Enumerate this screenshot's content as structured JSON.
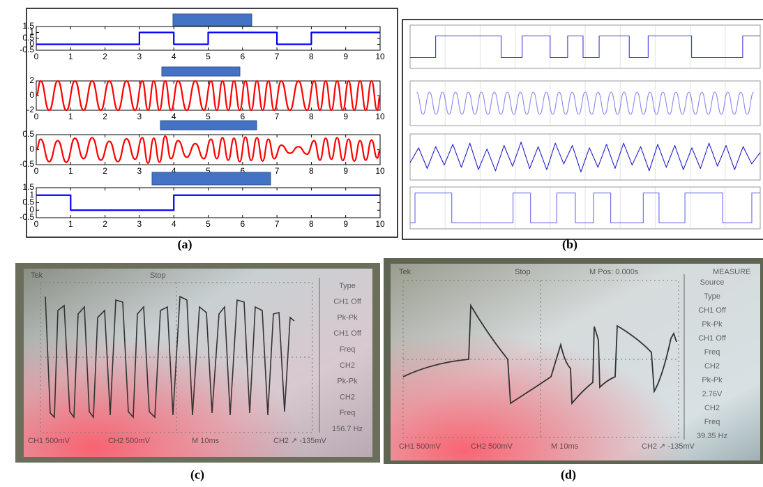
{
  "chart_data": [
    {
      "type": "line",
      "x": [
        0,
        3,
        3,
        4,
        4,
        5,
        5,
        7,
        7,
        8,
        8,
        10
      ],
      "values": [
        0,
        0,
        1,
        1,
        0,
        0,
        1,
        1,
        0,
        0,
        1,
        1
      ],
      "color": "#0000ff",
      "xlim": [
        0,
        10
      ],
      "ylim": [
        -0.5,
        1.5
      ],
      "xticks": [
        0,
        1,
        2,
        3,
        4,
        5,
        6,
        7,
        8,
        9,
        10
      ],
      "yticks": [
        -0.5,
        0,
        0.5,
        1,
        1.5
      ],
      "grid": false
    },
    {
      "type": "line",
      "smooth": true,
      "color": "#ff0000",
      "x": [
        0,
        0.125,
        0.375,
        0.625,
        0.875,
        1.125,
        1.375,
        1.625,
        1.875,
        2.125,
        2.375,
        2.625,
        2.875,
        3.083,
        3.25,
        3.417,
        3.583,
        3.75,
        3.917,
        4.125,
        4.375,
        4.625,
        4.875,
        5.083,
        5.25,
        5.417,
        5.583,
        5.75,
        5.917,
        6.083,
        6.25,
        6.417,
        6.583,
        6.75,
        6.917,
        7.125,
        7.375,
        7.625,
        7.875,
        8.083,
        8.25,
        8.417,
        8.583,
        8.75,
        8.917,
        9.083,
        9.25,
        9.417,
        9.583,
        9.75,
        9.917,
        10
      ],
      "values": [
        0,
        2,
        -2,
        2,
        -2,
        2,
        -2,
        2,
        -2,
        2,
        -2,
        2,
        -2,
        2,
        -2,
        2,
        -2,
        2,
        -2,
        2,
        -2,
        2,
        -2,
        2,
        -2,
        2,
        -2,
        2,
        -2,
        2,
        -2,
        2,
        -2,
        2,
        -2,
        2,
        -2,
        2,
        -2,
        2,
        -2,
        2,
        -2,
        2,
        -2,
        2,
        -2,
        2,
        -2,
        2,
        -2,
        0
      ],
      "xlim": [
        0,
        10
      ],
      "ylim": [
        -2,
        2
      ],
      "xticks": [
        0,
        1,
        2,
        3,
        4,
        5,
        6,
        7,
        8,
        9,
        10
      ],
      "yticks": [
        -2,
        0,
        2
      ],
      "grid": false
    },
    {
      "type": "line",
      "smooth": true,
      "color": "#ff0000",
      "x": [
        0,
        0.125,
        0.375,
        0.625,
        0.875,
        1.125,
        1.375,
        1.625,
        1.875,
        2.125,
        2.375,
        2.625,
        2.875,
        3.083,
        3.25,
        3.417,
        3.583,
        3.75,
        3.917,
        4.125,
        4.375,
        4.625,
        4.875,
        5.083,
        5.25,
        5.417,
        5.583,
        5.75,
        5.917,
        6.083,
        6.25,
        6.417,
        6.583,
        6.75,
        6.917,
        7.125,
        7.375,
        7.625,
        7.875,
        8.083,
        8.25,
        8.417,
        8.583,
        8.75,
        8.917,
        9.083,
        9.25,
        9.417,
        9.583,
        9.75,
        9.917,
        10
      ],
      "values": [
        0,
        0.35,
        -0.4,
        0.3,
        -0.42,
        0.38,
        -0.3,
        0.4,
        -0.35,
        0.28,
        -0.4,
        0.36,
        -0.32,
        0.4,
        -0.45,
        0.38,
        -0.42,
        0.45,
        -0.3,
        0.3,
        -0.25,
        0.2,
        -0.3,
        0.35,
        -0.3,
        0.4,
        -0.35,
        0.38,
        -0.4,
        0.42,
        -0.36,
        0.4,
        -0.38,
        0.35,
        -0.3,
        0.15,
        -0.12,
        0.1,
        -0.15,
        0.3,
        -0.35,
        0.38,
        -0.32,
        0.4,
        -0.36,
        0.35,
        -0.38,
        0.3,
        -0.35,
        0.32,
        -0.28,
        0
      ],
      "xlim": [
        0,
        10
      ],
      "ylim": [
        -0.5,
        0.5
      ],
      "xticks": [
        0,
        1,
        2,
        3,
        4,
        5,
        6,
        7,
        8,
        9,
        10
      ],
      "yticks": [
        -0.5,
        0,
        0.5
      ],
      "grid": false
    },
    {
      "type": "line",
      "x": [
        0,
        1,
        1,
        4,
        4,
        10
      ],
      "values": [
        1,
        1,
        0,
        0,
        1,
        1
      ],
      "color": "#0000ff",
      "xlim": [
        0,
        10
      ],
      "ylim": [
        -0.5,
        1.5
      ],
      "xticks": [
        0,
        1,
        2,
        3,
        4,
        5,
        6,
        7,
        8,
        9,
        10
      ],
      "yticks": [
        -0.5,
        0,
        0.5,
        1,
        1.5
      ],
      "grid": false
    },
    {
      "type": "line",
      "color": "#3a3ad8",
      "grid": true,
      "xlim": [
        0,
        100
      ],
      "ylim": [
        -0.5,
        1.5
      ],
      "x": [
        0,
        7.3,
        7.3,
        26,
        26,
        32,
        32,
        40,
        40,
        45,
        45,
        49.4,
        49.4,
        54,
        54,
        62.6,
        62.6,
        68,
        68,
        80.4,
        80.4,
        95,
        95,
        100
      ],
      "values": [
        0,
        0,
        1,
        1,
        0,
        0,
        1,
        1,
        0,
        0,
        1,
        1,
        0,
        0,
        1,
        1,
        0,
        0,
        1,
        1,
        0,
        0,
        1,
        1
      ]
    },
    {
      "type": "line",
      "smooth": true,
      "color": "#8a8af0",
      "grid": true,
      "xlim": [
        0,
        54
      ],
      "ylim": [
        -2,
        2
      ],
      "x": [
        1,
        2,
        3,
        4,
        5,
        6,
        7,
        8,
        9,
        10,
        11,
        12,
        13,
        14,
        15,
        16,
        17,
        18,
        19,
        20,
        21,
        22,
        23,
        24,
        25,
        26,
        27,
        28,
        29,
        30,
        31,
        32,
        33,
        34,
        35,
        36,
        37,
        38,
        39,
        40,
        41,
        42,
        43,
        44,
        45,
        46,
        47,
        48,
        49,
        50,
        51,
        52,
        53
      ],
      "values": [
        1,
        -1,
        1,
        -1,
        1,
        -1,
        1,
        -1,
        1,
        -1,
        1,
        -1,
        1,
        -1,
        1,
        -1,
        1,
        -1,
        1,
        -1,
        1,
        -1,
        1,
        -1,
        1,
        -1,
        1,
        -1,
        1,
        -1,
        1,
        -1,
        1,
        -1,
        1,
        -1,
        1,
        -1,
        1,
        -1,
        1,
        -1,
        1,
        -1,
        1,
        -1,
        1,
        -1,
        1,
        -1,
        1,
        -1,
        1
      ]
    },
    {
      "type": "line",
      "color": "#2020c8",
      "grid": true,
      "xlim": [
        0,
        41
      ],
      "ylim": [
        -2,
        2
      ],
      "x": [
        0,
        1,
        2,
        3,
        4,
        5,
        6,
        7,
        8,
        9,
        10,
        11,
        12,
        13,
        14,
        15,
        16,
        17,
        18,
        19,
        20,
        21,
        22,
        23,
        24,
        25,
        26,
        27,
        28,
        29,
        30,
        31,
        32,
        33,
        34,
        35,
        36,
        37,
        38,
        39,
        40,
        41
      ],
      "values": [
        -0.5,
        0.8,
        -1,
        0.9,
        -0.7,
        1.1,
        -0.9,
        1.2,
        -1.1,
        0.7,
        -1.2,
        1,
        -0.8,
        1.3,
        -1,
        0.9,
        -1.1,
        1.2,
        -0.6,
        1,
        -1.3,
        0.8,
        -0.9,
        1.1,
        -1,
        1.2,
        -0.7,
        0.9,
        -1.2,
        1.1,
        -0.9,
        1,
        -1.1,
        0.8,
        -1,
        1.2,
        -0.8,
        1,
        -1.1,
        0.9,
        -0.6,
        0.4
      ]
    },
    {
      "type": "line",
      "color": "#6a6ae8",
      "grid": true,
      "xlim": [
        0,
        100
      ],
      "ylim": [
        -0.2,
        1.2
      ],
      "x": [
        0,
        1.4,
        1.4,
        11.9,
        11.9,
        29.4,
        29.4,
        34.4,
        34.4,
        41.9,
        41.9,
        47.2,
        47.2,
        52.4,
        52.4,
        57.3,
        57.3,
        66.6,
        66.6,
        71.1,
        71.1,
        78.5,
        78.5,
        89.3,
        89.3,
        97.6,
        97.6,
        100
      ],
      "values": [
        0,
        0,
        1,
        1,
        0,
        0,
        1,
        1,
        0,
        0,
        1,
        1,
        0,
        0,
        1,
        1,
        0,
        0,
        1,
        1,
        0,
        0,
        1,
        1,
        0,
        0,
        1,
        1
      ]
    }
  ],
  "captions": [
    "(a)",
    "(b)",
    "(c)",
    "(d)"
  ],
  "photos": [
    {
      "brand": "Tek",
      "state": "Stop",
      "bottom": [
        "CH1 500mV",
        "CH2 500mV",
        "M 10ms",
        "CH2 ↗ -135mV"
      ],
      "menu": [
        "Type",
        "CH1 Off",
        "Pk-Pk",
        "CH1 Off",
        "Freq",
        "CH2",
        "Pk-Pk",
        "CH2",
        "Freq",
        "156.7 Hz"
      ]
    },
    {
      "brand": "Tek",
      "state": "Stop",
      "position": "M Pos: 0.000s",
      "header": "MEASURE",
      "bottom": [
        "CH1 500mV",
        "CH2 500mV",
        "M 10ms",
        "CH2 ↗ -135mV"
      ],
      "menu": [
        "Source",
        "Type",
        "CH1 Off",
        "Pk-Pk",
        "CH1 Off",
        "Freq",
        "CH2",
        "Pk-Pk",
        "2.76V",
        "CH2",
        "Freq",
        "39.35 Hz"
      ]
    }
  ]
}
